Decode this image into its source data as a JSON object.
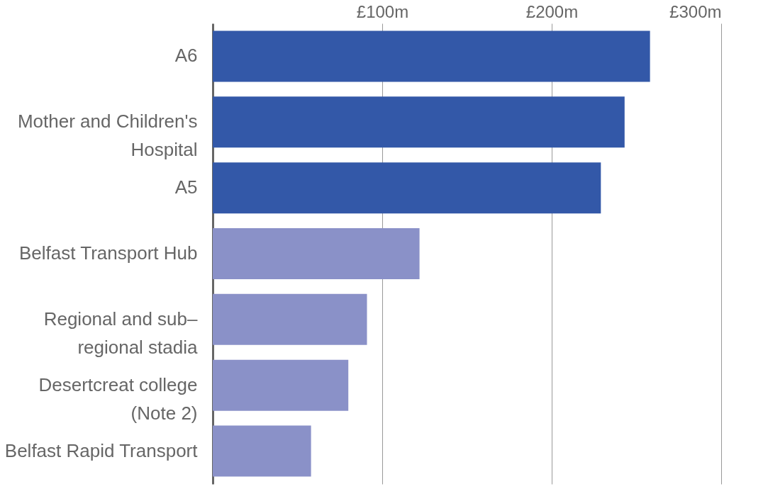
{
  "chart_data": {
    "type": "bar",
    "orientation": "horizontal",
    "categories": [
      "A6",
      "Mother and Children's Hospital",
      "A5",
      "Belfast Transport Hub",
      "Regional and sub–regional stadia",
      "Desertcreat college (Note 2)",
      "Belfast Rapid Transport"
    ],
    "values": [
      258,
      243,
      229,
      122,
      91,
      80,
      58
    ],
    "colors": [
      "#3358a8",
      "#3358a8",
      "#3358a8",
      "#8a91c8",
      "#8a91c8",
      "#8a91c8",
      "#8a91c8"
    ],
    "xlim": [
      0,
      300
    ],
    "xticks": [
      {
        "value": 100,
        "label": "£100m"
      },
      {
        "value": 200,
        "label": "£200m"
      },
      {
        "value": 300,
        "label": "£300m"
      }
    ],
    "grid": "x"
  }
}
